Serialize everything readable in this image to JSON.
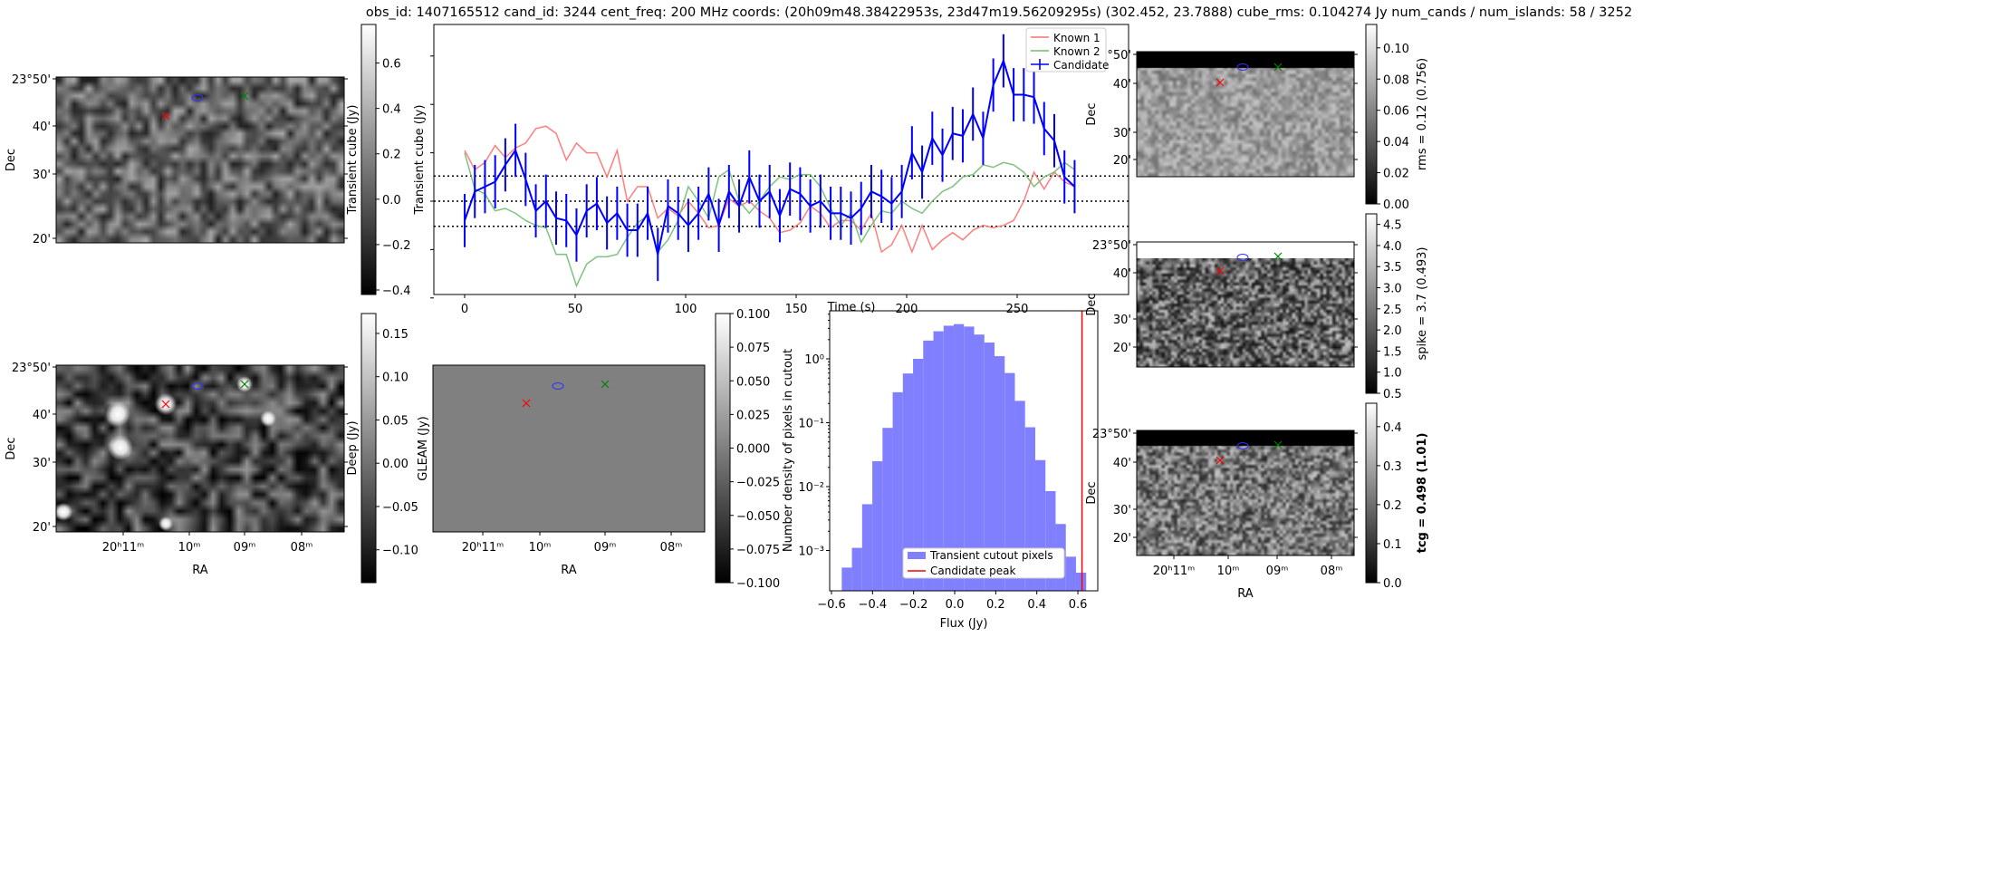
{
  "title": "obs_id: 1407165512 cand_id: 3244 cent_freq: 200 MHz coords: (20h09m48.38422953s, 23d47m19.56209295s) (302.452, 23.7888) cube_rms: 0.104274 Jy num_cands / num_islands: 58 / 3252",
  "colors": {
    "known1": "#ff7070",
    "known2": "#70bb70",
    "candidate": "#0000ff",
    "hist": "#8080ff",
    "peak": "#ff0000",
    "gleam_fill": "#808080"
  },
  "panels": {
    "transient_image": {
      "ylabel": "Dec",
      "yticks": [
        "23°50'",
        "40'",
        "30'",
        "20'"
      ],
      "colorbar": {
        "label": "Transient cube (Jy)",
        "range": [
          -0.42,
          0.77
        ],
        "ticks": [
          0.6,
          0.4,
          0.2,
          0.0,
          -0.2,
          -0.4
        ],
        "tick_labels": [
          "0.6",
          "0.4",
          "0.2",
          "0.0",
          "−0.2",
          "−0.4"
        ]
      }
    },
    "deep_image": {
      "ylabel": "Dec",
      "xlabel": "RA",
      "yticks": [
        "23°50'",
        "40'",
        "30'",
        "20'"
      ],
      "xticks": [
        "20ʰ11ᵐ",
        "10ᵐ",
        "09ᵐ",
        "08ᵐ"
      ],
      "colorbar": {
        "label": "Deep (Jy)",
        "range": [
          -0.138,
          0.173
        ],
        "ticks": [
          0.15,
          0.1,
          0.05,
          0.0,
          -0.05,
          -0.1
        ],
        "tick_labels": [
          "0.15",
          "0.10",
          "0.05",
          "0.00",
          "−0.05",
          "−0.10"
        ]
      }
    },
    "gleam_image": {
      "ylabel": "GLEAM (Jy)",
      "xlabel": "RA",
      "xticks": [
        "20ʰ11ᵐ",
        "10ᵐ",
        "09ᵐ",
        "08ᵐ"
      ],
      "colorbar": {
        "range": [
          -0.1,
          0.1
        ],
        "ticks": [
          0.1,
          0.075,
          0.05,
          0.025,
          0.0,
          -0.025,
          -0.05,
          -0.075,
          -0.1
        ],
        "tick_labels": [
          "0.100",
          "0.075",
          "0.050",
          "0.025",
          "0.000",
          "−0.025",
          "−0.050",
          "−0.075",
          "−0.100"
        ]
      }
    },
    "rms_image": {
      "ylabel": "Dec",
      "yticks": [
        "23°50'",
        "40'",
        "30'",
        "20'"
      ],
      "colorbar": {
        "label": "rms = 0.12 (0.756)",
        "range": [
          0,
          0.115
        ],
        "ticks": [
          0.1,
          0.08,
          0.06,
          0.04,
          0.02,
          0.0
        ],
        "tick_labels": [
          "0.10",
          "0.08",
          "0.06",
          "0.04",
          "0.02",
          "0.00"
        ]
      }
    },
    "spike_image": {
      "ylabel": "Dec",
      "yticks": [
        "23°50'",
        "40'",
        "30'",
        "20'"
      ],
      "colorbar": {
        "label": "spike = 3.7 (0.493)",
        "range": [
          0.5,
          4.75
        ],
        "ticks": [
          4.5,
          4.0,
          3.5,
          3.0,
          2.5,
          2.0,
          1.5,
          1.0,
          0.5
        ],
        "tick_labels": [
          "4.5",
          "4.0",
          "3.5",
          "3.0",
          "2.5",
          "2.0",
          "1.5",
          "1.0",
          "0.5"
        ]
      }
    },
    "tcg_image": {
      "ylabel": "Dec",
      "xlabel": "RA",
      "yticks": [
        "23°50'",
        "40'",
        "30'",
        "20'"
      ],
      "xticks": [
        "20ʰ11ᵐ",
        "10ᵐ",
        "09ᵐ",
        "08ᵐ"
      ],
      "colorbar": {
        "label": "tcg = 0.498 (1.01)",
        "range": [
          0,
          0.46
        ],
        "ticks": [
          0.4,
          0.3,
          0.2,
          0.1,
          0.0
        ],
        "tick_labels": [
          "0.4",
          "0.3",
          "0.2",
          "0.1",
          "0.0"
        ]
      }
    }
  },
  "chart_data": [
    {
      "type": "line",
      "title": "",
      "xlabel": "Time (s)",
      "ylabel": "Transient cube (Jy)",
      "xlim": [
        -14,
        300
      ],
      "ylim": [
        -0.42,
        0.77
      ],
      "xticks": [
        0,
        50,
        100,
        150,
        200,
        250
      ],
      "yticks": [
        0.6,
        0.4,
        0.2,
        0.0,
        -0.2,
        -0.4
      ],
      "hlines": [
        0.104,
        0.0,
        -0.104
      ],
      "legend": "top-right",
      "x": [
        0,
        4.6,
        9.2,
        13.8,
        18.4,
        23,
        27.6,
        32.2,
        36.8,
        41.4,
        46,
        50.6,
        55.2,
        59.8,
        64.4,
        69,
        73.6,
        78.2,
        82.8,
        87.4,
        92,
        96.6,
        101.2,
        105.8,
        110.4,
        115,
        119.6,
        124.2,
        128.8,
        133.4,
        138,
        142.6,
        147.2,
        151.8,
        156.4,
        161,
        165.6,
        170.2,
        174.8,
        179.4,
        184,
        188.6,
        193.2,
        197.8,
        202.4,
        207,
        211.6,
        216.2,
        220.8,
        225.4,
        230,
        234.6,
        239.2,
        243.8,
        248.4,
        253,
        257.6,
        262.2,
        266.8,
        271.4,
        276
      ],
      "series": [
        {
          "name": "Known 1",
          "color": "#ff7070",
          "values": [
            0.21,
            0.13,
            0.16,
            0.23,
            0.18,
            0.22,
            0.24,
            0.3,
            0.31,
            0.28,
            0.17,
            0.24,
            0.2,
            0.2,
            0.1,
            0.21,
            0.0,
            0.06,
            0.06,
            -0.07,
            -0.03,
            -0.06,
            0.0,
            -0.05,
            -0.11,
            -0.1,
            0.01,
            -0.02,
            0.0,
            -0.04,
            -0.07,
            -0.13,
            -0.12,
            -0.09,
            -0.02,
            -0.05,
            -0.11,
            -0.08,
            -0.08,
            -0.12,
            -0.05,
            -0.21,
            -0.18,
            -0.1,
            -0.21,
            -0.1,
            -0.2,
            -0.16,
            -0.13,
            -0.16,
            -0.12,
            -0.1,
            -0.11,
            -0.1,
            -0.08,
            0.0,
            0.12,
            0.05,
            0.12,
            0.08,
            0.06
          ]
        },
        {
          "name": "Known 2",
          "color": "#70bb70",
          "values": [
            0.2,
            0.05,
            0.03,
            -0.04,
            -0.03,
            -0.05,
            -0.08,
            -0.1,
            -0.11,
            -0.22,
            -0.22,
            -0.35,
            -0.26,
            -0.23,
            -0.23,
            -0.22,
            -0.15,
            -0.09,
            -0.06,
            -0.21,
            -0.16,
            -0.08,
            0.06,
            0.0,
            -0.07,
            0.1,
            0.13,
            0.0,
            -0.05,
            0.0,
            0.06,
            0.1,
            0.09,
            0.11,
            0.11,
            0.06,
            -0.03,
            -0.1,
            -0.05,
            -0.17,
            -0.1,
            -0.04,
            -0.05,
            0.0,
            -0.03,
            -0.05,
            0.0,
            0.04,
            0.06,
            0.1,
            0.11,
            0.15,
            0.14,
            0.16,
            0.15,
            0.12,
            0.06,
            0.1,
            0.12,
            0.16,
            0.13
          ]
        },
        {
          "name": "Candidate",
          "color": "#0000ff",
          "error": 0.11,
          "values": [
            -0.08,
            0.04,
            0.06,
            0.08,
            0.15,
            0.21,
            0.09,
            -0.04,
            0.0,
            -0.07,
            -0.08,
            -0.14,
            -0.04,
            -0.01,
            -0.09,
            -0.05,
            -0.12,
            -0.12,
            -0.05,
            -0.22,
            -0.02,
            -0.05,
            -0.1,
            -0.05,
            0.03,
            -0.1,
            0.04,
            -0.02,
            0.1,
            0.0,
            0.04,
            -0.06,
            0.05,
            0.03,
            -0.02,
            0.0,
            -0.05,
            -0.05,
            -0.07,
            -0.03,
            0.04,
            0.02,
            -0.01,
            0.04,
            0.2,
            0.12,
            0.26,
            0.19,
            0.28,
            0.27,
            0.36,
            0.26,
            0.48,
            0.58,
            0.44,
            0.44,
            0.43,
            0.3,
            0.25,
            0.1,
            0.06
          ]
        }
      ]
    },
    {
      "type": "bar",
      "title": "",
      "xlabel": "Flux (Jy)",
      "ylabel": "Number density of pixels in cutout",
      "yscale": "log",
      "xlim": [
        -0.62,
        0.66
      ],
      "ylim": [
        0.00022,
        5.8
      ],
      "xticks": [
        -0.6,
        -0.4,
        -0.2,
        0.0,
        0.2,
        0.4,
        0.6
      ],
      "xtick_labels": [
        "−0.6",
        "−0.4",
        "−0.2",
        "0.0",
        "0.2",
        "0.4",
        "0.6"
      ],
      "yticks": [
        1,
        0.1,
        0.01,
        0.001
      ],
      "ytick_labels": [
        "10⁰",
        "10⁻¹",
        "10⁻²",
        "10⁻³"
      ],
      "bin_start": -0.55,
      "bin_width": 0.0496,
      "values": [
        0.00054,
        0.0011,
        0.0053,
        0.025,
        0.083,
        0.3,
        0.59,
        1.0,
        1.93,
        2.7,
        3.3,
        3.5,
        3.2,
        2.4,
        1.8,
        1.1,
        0.6,
        0.22,
        0.085,
        0.026,
        0.0085,
        0.0026,
        0.0008,
        0.00045
      ],
      "candidate_peak": 0.62,
      "legend": "lower-center",
      "legend_entries": [
        "Transient cutout pixels",
        "Candidate peak"
      ]
    }
  ]
}
